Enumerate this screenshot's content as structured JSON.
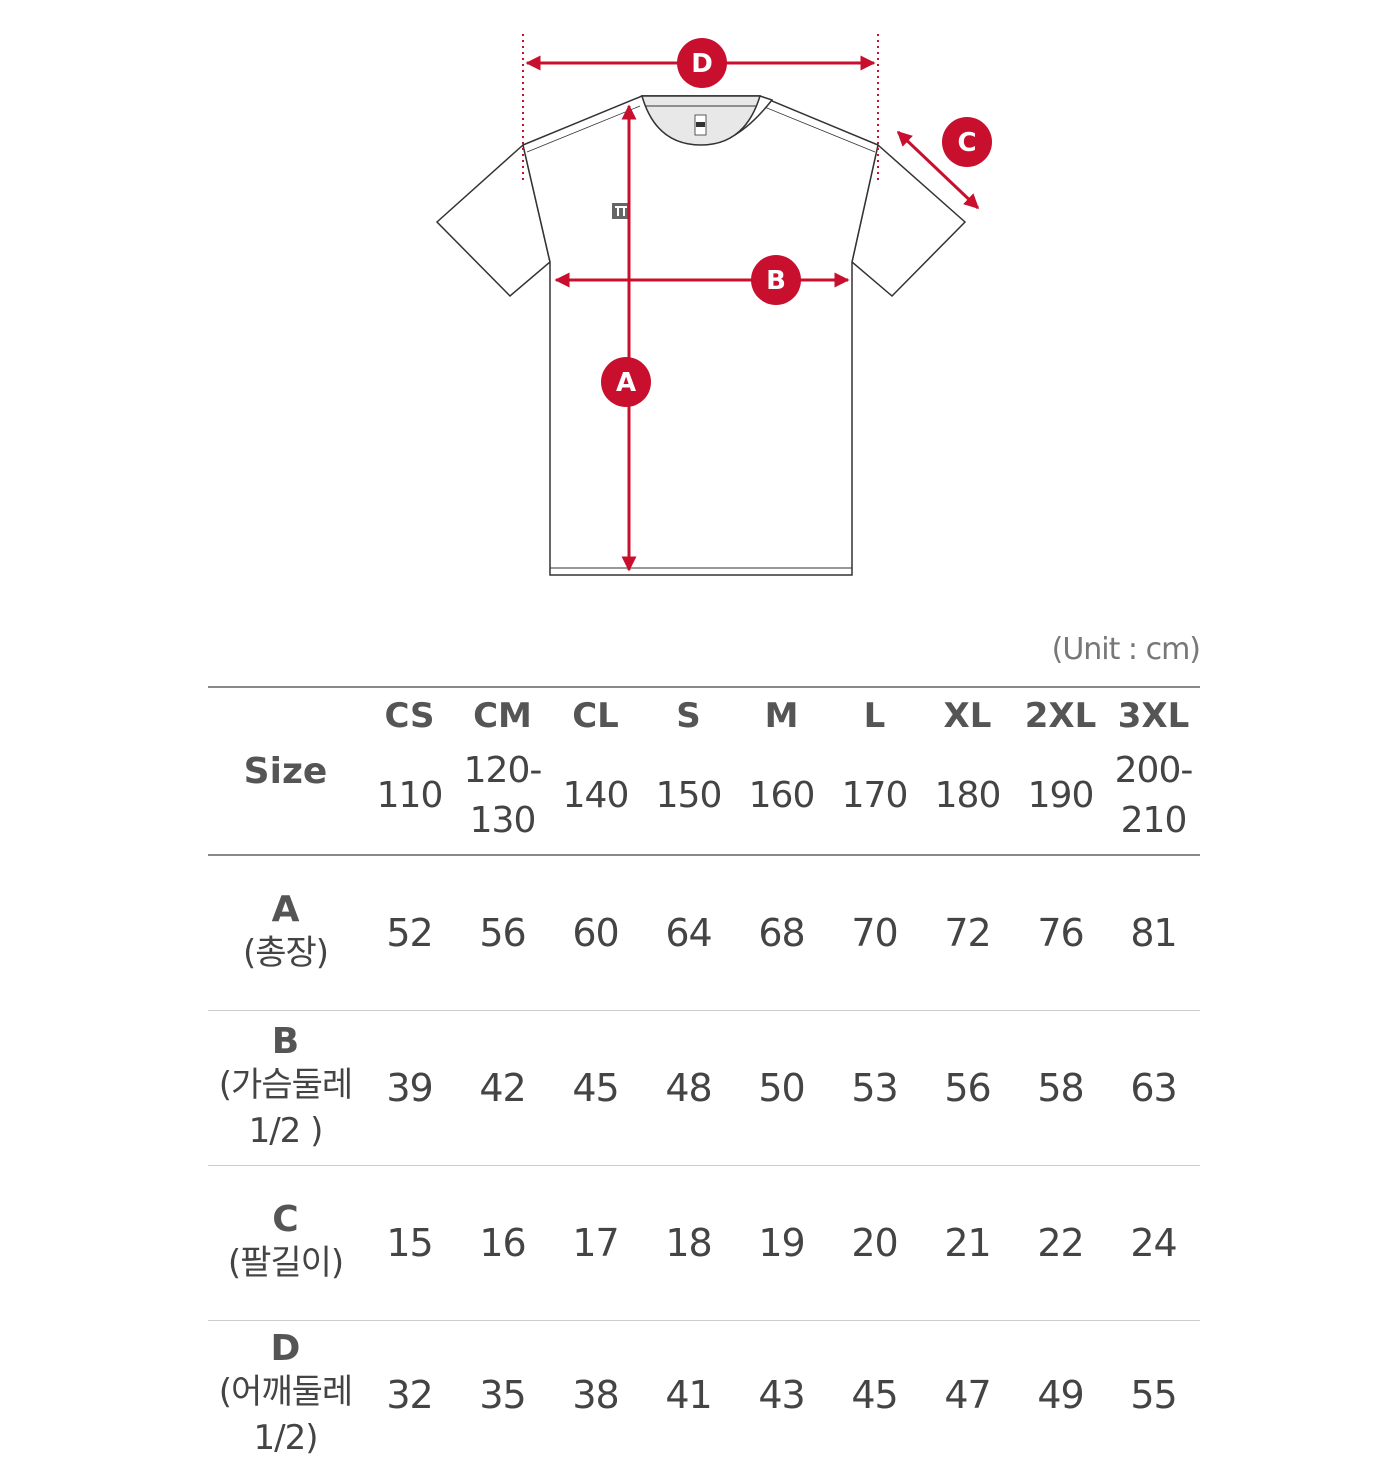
{
  "diagram": {
    "markers": [
      "A",
      "B",
      "C",
      "D"
    ],
    "colors": {
      "accent": "#c8102e",
      "outline": "#333333",
      "text": "#444444"
    }
  },
  "unit_label": "(Unit : cm)",
  "table": {
    "size_header": "Size",
    "sizes": [
      {
        "code": "CS",
        "height": "110"
      },
      {
        "code": "CM",
        "height": "120-130"
      },
      {
        "code": "CL",
        "height": "140"
      },
      {
        "code": "S",
        "height": "150"
      },
      {
        "code": "M",
        "height": "160"
      },
      {
        "code": "L",
        "height": "170"
      },
      {
        "code": "XL",
        "height": "180"
      },
      {
        "code": "2XL",
        "height": "190"
      },
      {
        "code": "3XL",
        "height": "200-210"
      }
    ],
    "rows": [
      {
        "letter": "A",
        "desc": "(총장)",
        "values": [
          "52",
          "56",
          "60",
          "64",
          "68",
          "70",
          "72",
          "76",
          "81"
        ]
      },
      {
        "letter": "B",
        "desc": "(가슴둘레 1/2 )",
        "values": [
          "39",
          "42",
          "45",
          "48",
          "50",
          "53",
          "56",
          "58",
          "63"
        ]
      },
      {
        "letter": "C",
        "desc": "(팔길이)",
        "values": [
          "15",
          "16",
          "17",
          "18",
          "19",
          "20",
          "21",
          "22",
          "24"
        ]
      },
      {
        "letter": "D",
        "desc": "(어깨둘레 1/2)",
        "values": [
          "32",
          "35",
          "38",
          "41",
          "43",
          "45",
          "47",
          "49",
          "55"
        ]
      }
    ]
  }
}
